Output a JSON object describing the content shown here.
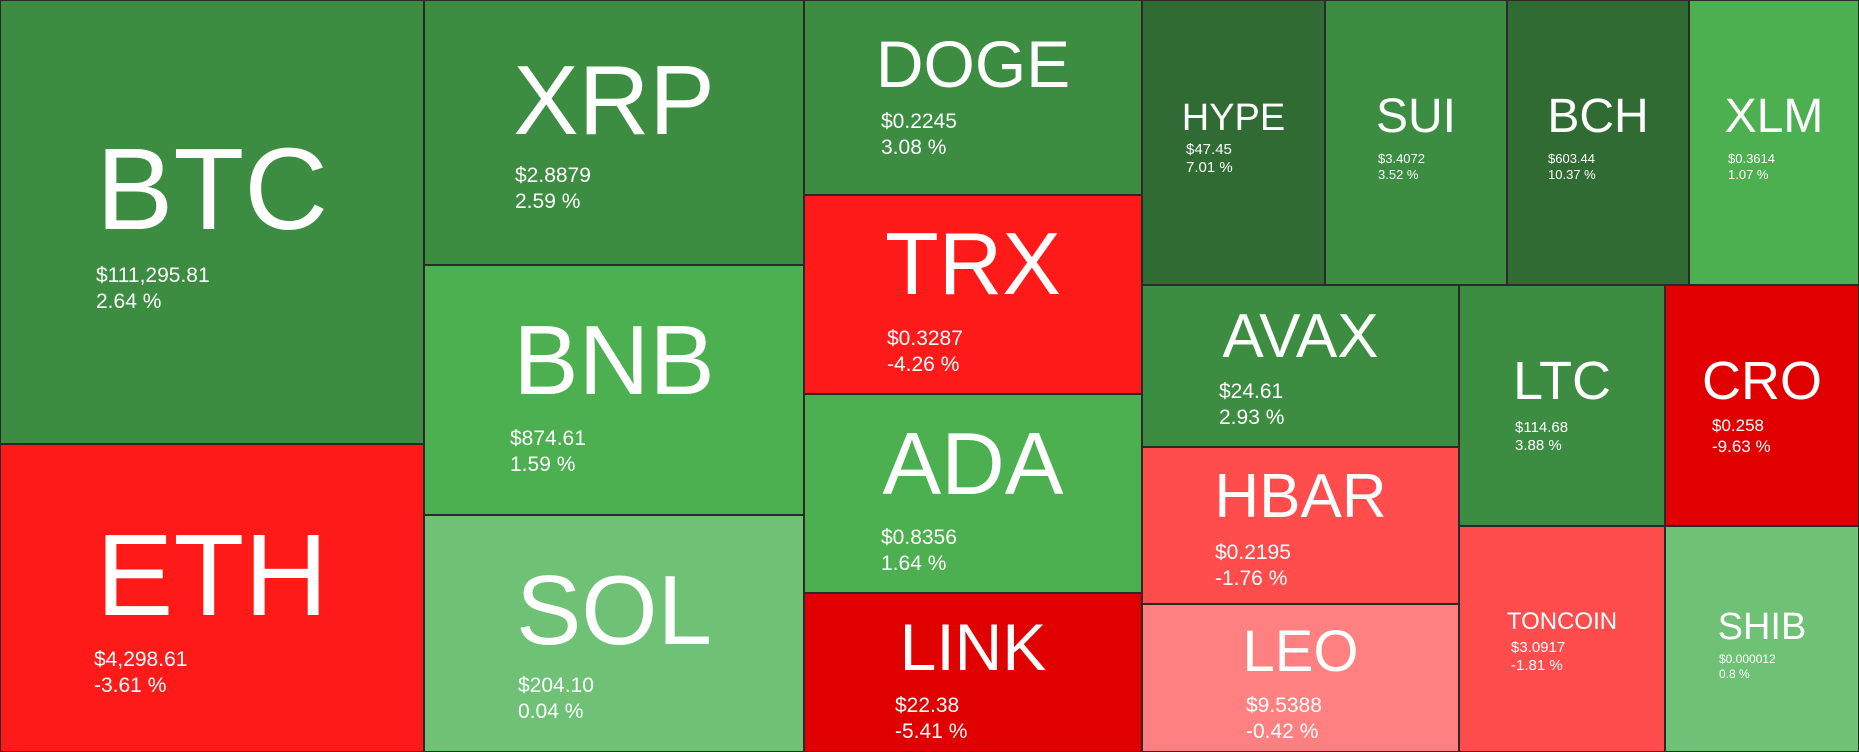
{
  "chart_data": {
    "type": "treemap",
    "title": "",
    "colors": {
      "strong_up": "#2F6B32",
      "up": "#3C8D41",
      "mid_up": "#4CAF50",
      "light_up": "#6FC176",
      "strong_down": "#E00000",
      "down": "#FF1A1A",
      "mid_down": "#FF4C4C",
      "light_down": "#FF8080"
    },
    "tiles": [
      {
        "symbol": "BTC",
        "price": "$111,295.81",
        "change": "2.64 %",
        "change_value": 2.64,
        "color": "#3C8D41"
      },
      {
        "symbol": "ETH",
        "price": "$4,298.61",
        "change": "-3.61 %",
        "change_value": -3.61,
        "color": "#FF1A1A"
      },
      {
        "symbol": "XRP",
        "price": "$2.8879",
        "change": "2.59 %",
        "change_value": 2.59,
        "color": "#3C8D41"
      },
      {
        "symbol": "BNB",
        "price": "$874.61",
        "change": "1.59 %",
        "change_value": 1.59,
        "color": "#4CAF50"
      },
      {
        "symbol": "SOL",
        "price": "$204.10",
        "change": "0.04 %",
        "change_value": 0.04,
        "color": "#6FC176"
      },
      {
        "symbol": "DOGE",
        "price": "$0.2245",
        "change": "3.08 %",
        "change_value": 3.08,
        "color": "#3C8D41"
      },
      {
        "symbol": "TRX",
        "price": "$0.3287",
        "change": "-4.26 %",
        "change_value": -4.26,
        "color": "#FF1A1A"
      },
      {
        "symbol": "ADA",
        "price": "$0.8356",
        "change": "1.64 %",
        "change_value": 1.64,
        "color": "#4CAF50"
      },
      {
        "symbol": "LINK",
        "price": "$22.38",
        "change": "-5.41 %",
        "change_value": -5.41,
        "color": "#E00000"
      },
      {
        "symbol": "HYPE",
        "price": "$47.45",
        "change": "7.01 %",
        "change_value": 7.01,
        "color": "#2F6B32"
      },
      {
        "symbol": "SUI",
        "price": "$3.4072",
        "change": "3.52 %",
        "change_value": 3.52,
        "color": "#3C8D41"
      },
      {
        "symbol": "BCH",
        "price": "$603.44",
        "change": "10.37 %",
        "change_value": 10.37,
        "color": "#2F6B32"
      },
      {
        "symbol": "XLM",
        "price": "$0.3614",
        "change": "1.07 %",
        "change_value": 1.07,
        "color": "#4CAF50"
      },
      {
        "symbol": "AVAX",
        "price": "$24.61",
        "change": "2.93 %",
        "change_value": 2.93,
        "color": "#3C8D41"
      },
      {
        "symbol": "HBAR",
        "price": "$0.2195",
        "change": "-1.76 %",
        "change_value": -1.76,
        "color": "#FF4C4C"
      },
      {
        "symbol": "LEO",
        "price": "$9.5388",
        "change": "-0.42 %",
        "change_value": -0.42,
        "color": "#FF8080"
      },
      {
        "symbol": "LTC",
        "price": "$114.68",
        "change": "3.88 %",
        "change_value": 3.88,
        "color": "#3C8D41"
      },
      {
        "symbol": "CRO",
        "price": "$0.258",
        "change": "-9.63 %",
        "change_value": -9.63,
        "color": "#E00000"
      },
      {
        "symbol": "TONCOIN",
        "price": "$3.0917",
        "change": "-1.81 %",
        "change_value": -1.81,
        "color": "#FF4C4C"
      },
      {
        "symbol": "SHIB",
        "price": "$0.000012",
        "change": "0.8 %",
        "change_value": 0.8,
        "color": "#6FC176"
      }
    ]
  }
}
